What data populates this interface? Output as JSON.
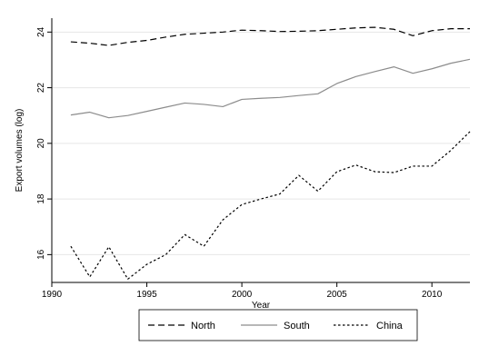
{
  "chart_data": {
    "type": "line",
    "xlabel": "Year",
    "ylabel": "Export volumes (log)",
    "x": [
      1991,
      1992,
      1993,
      1994,
      1995,
      1996,
      1997,
      1998,
      1999,
      2000,
      2001,
      2002,
      2003,
      2004,
      2005,
      2006,
      2007,
      2008,
      2009,
      2010,
      2011,
      2012
    ],
    "series": [
      {
        "name": "North",
        "line_style": "dashed",
        "color": "#000000",
        "values": [
          23.65,
          23.6,
          23.52,
          23.63,
          23.7,
          23.82,
          23.92,
          23.96,
          24.0,
          24.07,
          24.05,
          24.02,
          24.03,
          24.05,
          24.1,
          24.15,
          24.17,
          24.1,
          23.87,
          24.05,
          24.12,
          24.12
        ]
      },
      {
        "name": "South",
        "line_style": "solid",
        "color": "#8c8c8c",
        "values": [
          21.02,
          21.12,
          20.92,
          21.0,
          21.15,
          21.3,
          21.45,
          21.4,
          21.32,
          21.58,
          21.62,
          21.65,
          21.72,
          21.78,
          22.15,
          22.4,
          22.58,
          22.75,
          22.52,
          22.68,
          22.88,
          23.02
        ]
      },
      {
        "name": "China",
        "line_style": "dotted",
        "color": "#000000",
        "values": [
          16.3,
          15.2,
          16.28,
          15.12,
          15.65,
          16.0,
          16.72,
          16.3,
          17.25,
          17.8,
          18.0,
          18.18,
          18.85,
          18.28,
          18.98,
          19.22,
          18.98,
          18.95,
          19.18,
          19.18,
          19.75,
          20.42
        ]
      }
    ],
    "xlim": [
      1990,
      2012
    ],
    "ylim": [
      15,
      24.5
    ],
    "xticks": [
      1990,
      1995,
      2000,
      2005,
      2010
    ],
    "yticks": [
      16,
      18,
      20,
      22,
      24
    ],
    "grid": "horizontal",
    "legend_position": "bottom"
  }
}
